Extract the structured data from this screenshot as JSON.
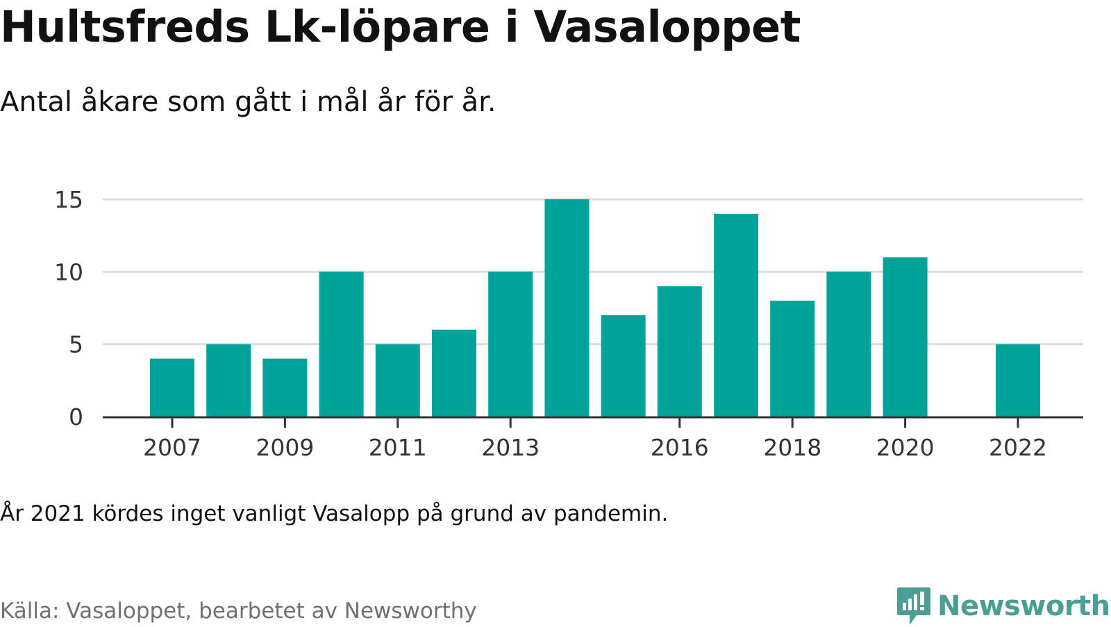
{
  "header": {
    "title": "Hultsfreds Lk-löpare i Vasaloppet",
    "subtitle": "Antal åkare som gått i mål år för år."
  },
  "footer": {
    "note": "År 2021 kördes inget vanligt Vasalopp på grund av pandemin.",
    "source": "Källa: Vasaloppet, bearbetet av Newsworthy",
    "logo_text": "Newsworthy",
    "logo_icon": "bar-chart-speech-bubble-icon"
  },
  "colors": {
    "bar": "#00a398",
    "grid": "#dddddd",
    "axis": "#333333",
    "logo": "#4a9e95"
  },
  "chart_data": {
    "type": "bar",
    "title": "Hultsfreds Lk-löpare i Vasaloppet",
    "subtitle": "Antal åkare som gått i mål år för år.",
    "xlabel": "",
    "ylabel": "",
    "categories": [
      "2007",
      "2008",
      "2009",
      "2010",
      "2011",
      "2012",
      "2013",
      "2014",
      "2015",
      "2016",
      "2017",
      "2018",
      "2019",
      "2020",
      "2021",
      "2022"
    ],
    "values": [
      4,
      5,
      4,
      10,
      5,
      6,
      10,
      15,
      7,
      9,
      14,
      8,
      10,
      11,
      null,
      5
    ],
    "x_tick_labels": [
      "2007",
      "2009",
      "2011",
      "2013",
      "2016",
      "2018",
      "2020",
      "2022"
    ],
    "y_ticks": [
      0,
      5,
      10,
      15
    ],
    "ylim": [
      0,
      15
    ],
    "grid": true,
    "legend": "none"
  }
}
